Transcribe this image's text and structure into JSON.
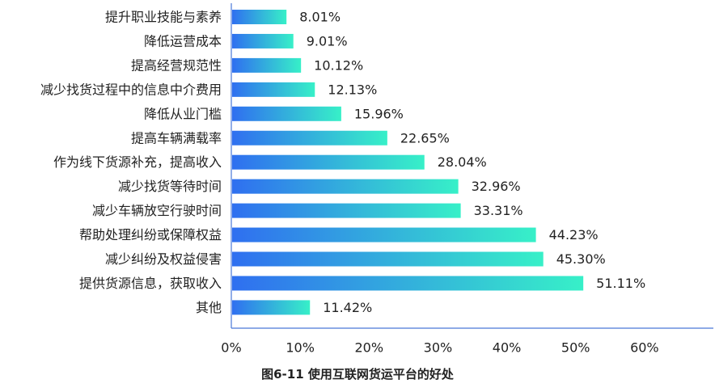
{
  "caption": "图6-11    使用互联网货运平台的好处",
  "colors": {
    "bar_start": "#2f6ff0",
    "bar_end": "#37f0c8",
    "axis": "#4a78d8"
  },
  "chart_data": {
    "type": "bar",
    "orientation": "horizontal",
    "categories": [
      "提升职业技能与素养",
      "降低运营成本",
      "提高经营规范性",
      "减少找货过程中的信息中介费用",
      "降低从业门槛",
      "提高车辆满载率",
      "作为线下货源补充，提高收入",
      "减少找货等待时间",
      "减少车辆放空行驶时间",
      "帮助处理纠纷或保障权益",
      "减少纠纷及权益侵害",
      "提供货源信息，获取收入",
      "其他"
    ],
    "values": [
      8.01,
      9.01,
      10.12,
      12.13,
      15.96,
      22.65,
      28.04,
      32.96,
      33.31,
      44.23,
      45.3,
      51.11,
      11.42
    ],
    "value_labels": [
      "8.01%",
      "9.01%",
      "10.12%",
      "12.13%",
      "15.96%",
      "22.65%",
      "28.04%",
      "32.96%",
      "33.31%",
      "44.23%",
      "45.30%",
      "51.11%",
      "11.42%"
    ],
    "xlim": [
      0,
      70
    ],
    "xticks": [
      0,
      10,
      20,
      30,
      40,
      50,
      60
    ],
    "xtick_labels": [
      "0%",
      "10%",
      "20%",
      "30%",
      "40%",
      "50%",
      "60%"
    ],
    "title": "",
    "xlabel": "",
    "ylabel": "",
    "grid": false,
    "legend": "none"
  }
}
